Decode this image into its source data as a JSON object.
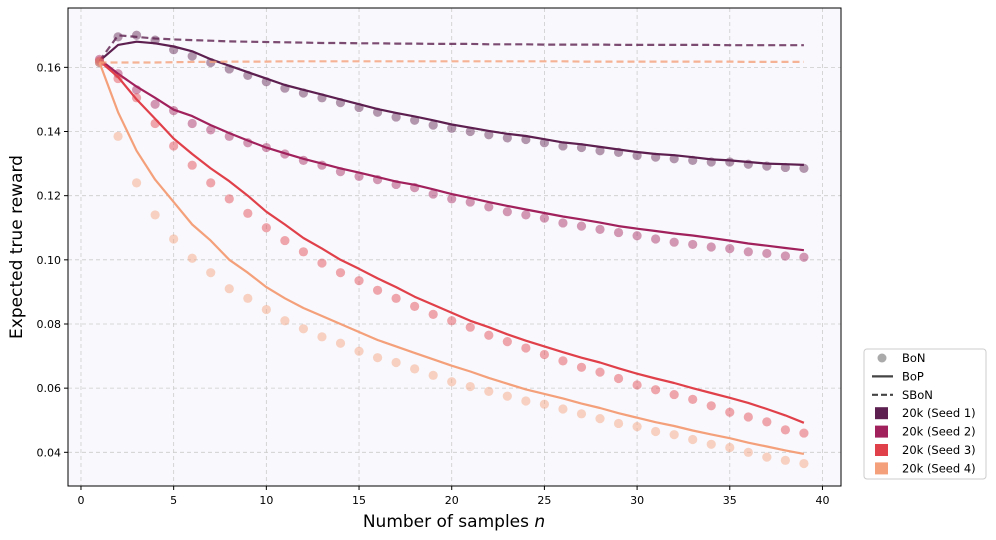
{
  "chart_data": {
    "type": "line",
    "xlabel": "Number of samples",
    "xlabel_var": "n",
    "ylabel": "Expected true reward",
    "xlim": [
      -0.7,
      41.0
    ],
    "ylim": [
      0.0295,
      0.1785
    ],
    "xticks": [
      0,
      5,
      10,
      15,
      20,
      25,
      30,
      35,
      40
    ],
    "yticks": [
      0.04,
      0.06,
      0.08,
      0.1,
      0.12,
      0.14,
      0.16
    ],
    "grid": true,
    "legend_position": "outside-lower-right",
    "legend": {
      "markers": [
        {
          "label": "BoN",
          "style": "dot"
        },
        {
          "label": "BoP",
          "style": "solid"
        },
        {
          "label": "SBoN",
          "style": "dashed"
        }
      ],
      "seeds": [
        {
          "label": "20k (Seed 1)",
          "color": "#5c1f4f"
        },
        {
          "label": "20k (Seed 2)",
          "color": "#a0215c"
        },
        {
          "label": "20k (Seed 3)",
          "color": "#e0404a"
        },
        {
          "label": "20k (Seed 4)",
          "color": "#f4a07a"
        }
      ]
    },
    "colors": {
      "seed1": "#5c1f4f",
      "seed2": "#a0215c",
      "seed3": "#e0404a",
      "seed4": "#f4a07a",
      "legend_dot": "#aaaaaa",
      "legend_line": "#444444",
      "plot_bg": "#f9f8fc"
    },
    "bon_x": [
      1,
      2,
      3,
      4,
      5,
      6,
      7,
      8,
      9,
      10,
      11,
      12,
      13,
      14,
      15,
      16,
      17,
      18,
      19,
      20,
      21,
      22,
      23,
      24,
      25,
      26,
      27,
      28,
      29,
      30,
      31,
      32,
      33,
      34,
      35,
      36,
      37,
      38,
      39
    ],
    "series": [
      {
        "name": "20k (Seed 1)",
        "color_key": "seed1",
        "bon": [
          0.1615,
          0.1695,
          0.17,
          0.1685,
          0.1655,
          0.1635,
          0.1615,
          0.1595,
          0.1575,
          0.1555,
          0.1535,
          0.152,
          0.1505,
          0.149,
          0.1475,
          0.146,
          0.1445,
          0.1435,
          0.142,
          0.141,
          0.14,
          0.139,
          0.138,
          0.1375,
          0.1365,
          0.1355,
          0.135,
          0.134,
          0.1335,
          0.1325,
          0.132,
          0.1315,
          0.131,
          0.1305,
          0.1305,
          0.1298,
          0.1292,
          0.1288,
          0.1285
        ],
        "bop": [
          0.162,
          0.167,
          0.168,
          0.1675,
          0.1665,
          0.165,
          0.1625,
          0.1605,
          0.1585,
          0.1565,
          0.1545,
          0.153,
          0.1515,
          0.15,
          0.1485,
          0.147,
          0.1458,
          0.1447,
          0.1435,
          0.1422,
          0.1412,
          0.1402,
          0.1393,
          0.1386,
          0.1376,
          0.1366,
          0.136,
          0.1352,
          0.1344,
          0.1336,
          0.133,
          0.1326,
          0.132,
          0.1313,
          0.131,
          0.1305,
          0.13,
          0.1298,
          0.1296
        ],
        "sbon": [
          0.162,
          0.17,
          0.1695,
          0.169,
          0.1687,
          0.1685,
          0.1683,
          0.1681,
          0.168,
          0.1679,
          0.1678,
          0.1677,
          0.1676,
          0.1676,
          0.1675,
          0.1675,
          0.1674,
          0.1674,
          0.1673,
          0.1673,
          0.1673,
          0.1672,
          0.1672,
          0.1672,
          0.1671,
          0.1671,
          0.1671,
          0.1671,
          0.167,
          0.167,
          0.167,
          0.167,
          0.167,
          0.167,
          0.1669,
          0.1669,
          0.1669,
          0.1669,
          0.1669
        ]
      },
      {
        "name": "20k (Seed 2)",
        "color_key": "seed2",
        "bon": [
          0.1625,
          0.158,
          0.153,
          0.1485,
          0.1465,
          0.1425,
          0.1405,
          0.1385,
          0.1365,
          0.135,
          0.133,
          0.131,
          0.1295,
          0.1275,
          0.126,
          0.125,
          0.1235,
          0.1225,
          0.1205,
          0.119,
          0.118,
          0.1165,
          0.115,
          0.114,
          0.113,
          0.1115,
          0.1105,
          0.1095,
          0.1085,
          0.1075,
          0.1065,
          0.1055,
          0.1048,
          0.104,
          0.1035,
          0.1025,
          0.102,
          0.1012,
          0.1008
        ],
        "bop": [
          0.1625,
          0.158,
          0.154,
          0.1505,
          0.1468,
          0.1448,
          0.142,
          0.1395,
          0.1372,
          0.135,
          0.1332,
          0.1315,
          0.13,
          0.1285,
          0.1272,
          0.1258,
          0.1244,
          0.1234,
          0.122,
          0.1205,
          0.1193,
          0.118,
          0.1168,
          0.1157,
          0.1146,
          0.1135,
          0.1126,
          0.1116,
          0.1105,
          0.1097,
          0.109,
          0.1082,
          0.1076,
          0.1068,
          0.106,
          0.1051,
          0.1044,
          0.1037,
          0.103
        ]
      },
      {
        "name": "20k (Seed 3)",
        "color_key": "seed3",
        "bon": [
          0.162,
          0.1565,
          0.1505,
          0.1425,
          0.1355,
          0.1295,
          0.124,
          0.119,
          0.1145,
          0.11,
          0.106,
          0.1025,
          0.099,
          0.096,
          0.0935,
          0.0905,
          0.088,
          0.0855,
          0.083,
          0.081,
          0.079,
          0.0765,
          0.0745,
          0.0725,
          0.0705,
          0.0685,
          0.0665,
          0.065,
          0.063,
          0.061,
          0.0595,
          0.058,
          0.0565,
          0.0545,
          0.0525,
          0.051,
          0.0495,
          0.047,
          0.046
        ],
        "bop": [
          0.162,
          0.157,
          0.15,
          0.144,
          0.1378,
          0.133,
          0.1285,
          0.1245,
          0.12,
          0.115,
          0.111,
          0.1068,
          0.1035,
          0.1,
          0.0972,
          0.0942,
          0.0915,
          0.0885,
          0.086,
          0.0835,
          0.081,
          0.079,
          0.0768,
          0.0748,
          0.073,
          0.0712,
          0.0695,
          0.068,
          0.0662,
          0.0645,
          0.063,
          0.0616,
          0.06,
          0.0585,
          0.057,
          0.0554,
          0.0535,
          0.0515,
          0.0492
        ]
      },
      {
        "name": "20k (Seed 4)",
        "color_key": "seed4",
        "sbon": [
          0.1615,
          0.1615,
          0.1615,
          0.1615,
          0.1616,
          0.1617,
          0.1617,
          0.1618,
          0.1618,
          0.1618,
          0.1619,
          0.1619,
          0.1619,
          0.1619,
          0.1619,
          0.1619,
          0.1619,
          0.1619,
          0.1619,
          0.1619,
          0.1619,
          0.1619,
          0.1619,
          0.1619,
          0.1619,
          0.1619,
          0.1618,
          0.1618,
          0.1618,
          0.1618,
          0.1618,
          0.1618,
          0.1618,
          0.1618,
          0.1618,
          0.1617,
          0.1617,
          0.1617,
          0.1617
        ],
        "bon": [
          0.1615,
          0.1385,
          0.124,
          0.114,
          0.1065,
          0.1005,
          0.096,
          0.091,
          0.088,
          0.0845,
          0.081,
          0.0785,
          0.076,
          0.074,
          0.0715,
          0.0695,
          0.068,
          0.066,
          0.064,
          0.062,
          0.0605,
          0.059,
          0.0575,
          0.056,
          0.055,
          0.0535,
          0.052,
          0.0505,
          0.049,
          0.048,
          0.0465,
          0.0455,
          0.044,
          0.0425,
          0.0415,
          0.04,
          0.0385,
          0.0375,
          0.0365
        ],
        "bop": [
          0.1615,
          0.146,
          0.134,
          0.125,
          0.118,
          0.111,
          0.106,
          0.1,
          0.096,
          0.0915,
          0.088,
          0.085,
          0.0825,
          0.08,
          0.0775,
          0.075,
          0.073,
          0.071,
          0.069,
          0.067,
          0.0652,
          0.0632,
          0.0614,
          0.0596,
          0.0582,
          0.0568,
          0.0552,
          0.0538,
          0.0522,
          0.0508,
          0.0494,
          0.0482,
          0.0468,
          0.0456,
          0.0444,
          0.043,
          0.0418,
          0.0406,
          0.0395
        ]
      }
    ]
  }
}
